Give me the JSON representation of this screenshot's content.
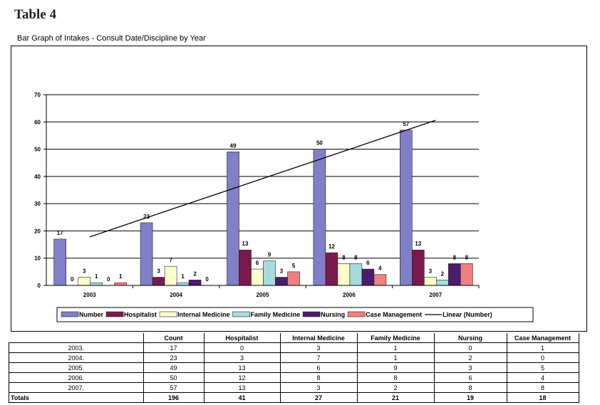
{
  "page": {
    "title": "Table 4"
  },
  "chart_data": {
    "type": "bar",
    "title": "Bar Graph of Intakes  - Consult Date/Discipline by Year",
    "categories": [
      "2003",
      "2004",
      "2005",
      "2006",
      "2007"
    ],
    "ylim": [
      0,
      70
    ],
    "yticks": [
      0,
      10,
      20,
      30,
      40,
      50,
      60,
      70
    ],
    "grid": true,
    "legend": "bottom",
    "series": [
      {
        "name": "Number",
        "color": "#8080c8",
        "values": [
          17,
          23,
          49,
          50,
          57
        ]
      },
      {
        "name": "Hospitalist",
        "color": "#7a1a4c",
        "values": [
          0,
          3,
          13,
          12,
          13
        ]
      },
      {
        "name": "Internal Medicine",
        "color": "#ffffcc",
        "values": [
          3,
          7,
          6,
          8,
          3
        ]
      },
      {
        "name": "Family Medicine",
        "color": "#a6dcdc",
        "values": [
          1,
          1,
          9,
          8,
          2
        ]
      },
      {
        "name": "Nursing",
        "color": "#4a1c6c",
        "values": [
          0,
          2,
          3,
          6,
          8
        ]
      },
      {
        "name": "Case Management",
        "color": "#f08080",
        "values": [
          1,
          0,
          5,
          4,
          8
        ]
      }
    ],
    "trendline": {
      "name": "Linear (Number)",
      "color": "#000000"
    }
  },
  "table": {
    "headers": [
      "",
      "Count",
      "Hospitalist",
      "Internal Medicine",
      "Family Medicine",
      "Nursing",
      "Case Management"
    ],
    "rows": [
      [
        "2003.",
        "17",
        "0",
        "3",
        "1",
        "0",
        "1"
      ],
      [
        "2004.",
        "23",
        "3",
        "7",
        "1",
        "2",
        "0"
      ],
      [
        "2005.",
        "49",
        "13",
        "6",
        "9",
        "3",
        "5"
      ],
      [
        "2006.",
        "50",
        "12",
        "8",
        "8",
        "6",
        "4"
      ],
      [
        "2007.",
        "57",
        "13",
        "3",
        "2",
        "8",
        "8"
      ]
    ],
    "totals": [
      "Totals",
      "196",
      "41",
      "27",
      "21",
      "19",
      "18"
    ]
  }
}
